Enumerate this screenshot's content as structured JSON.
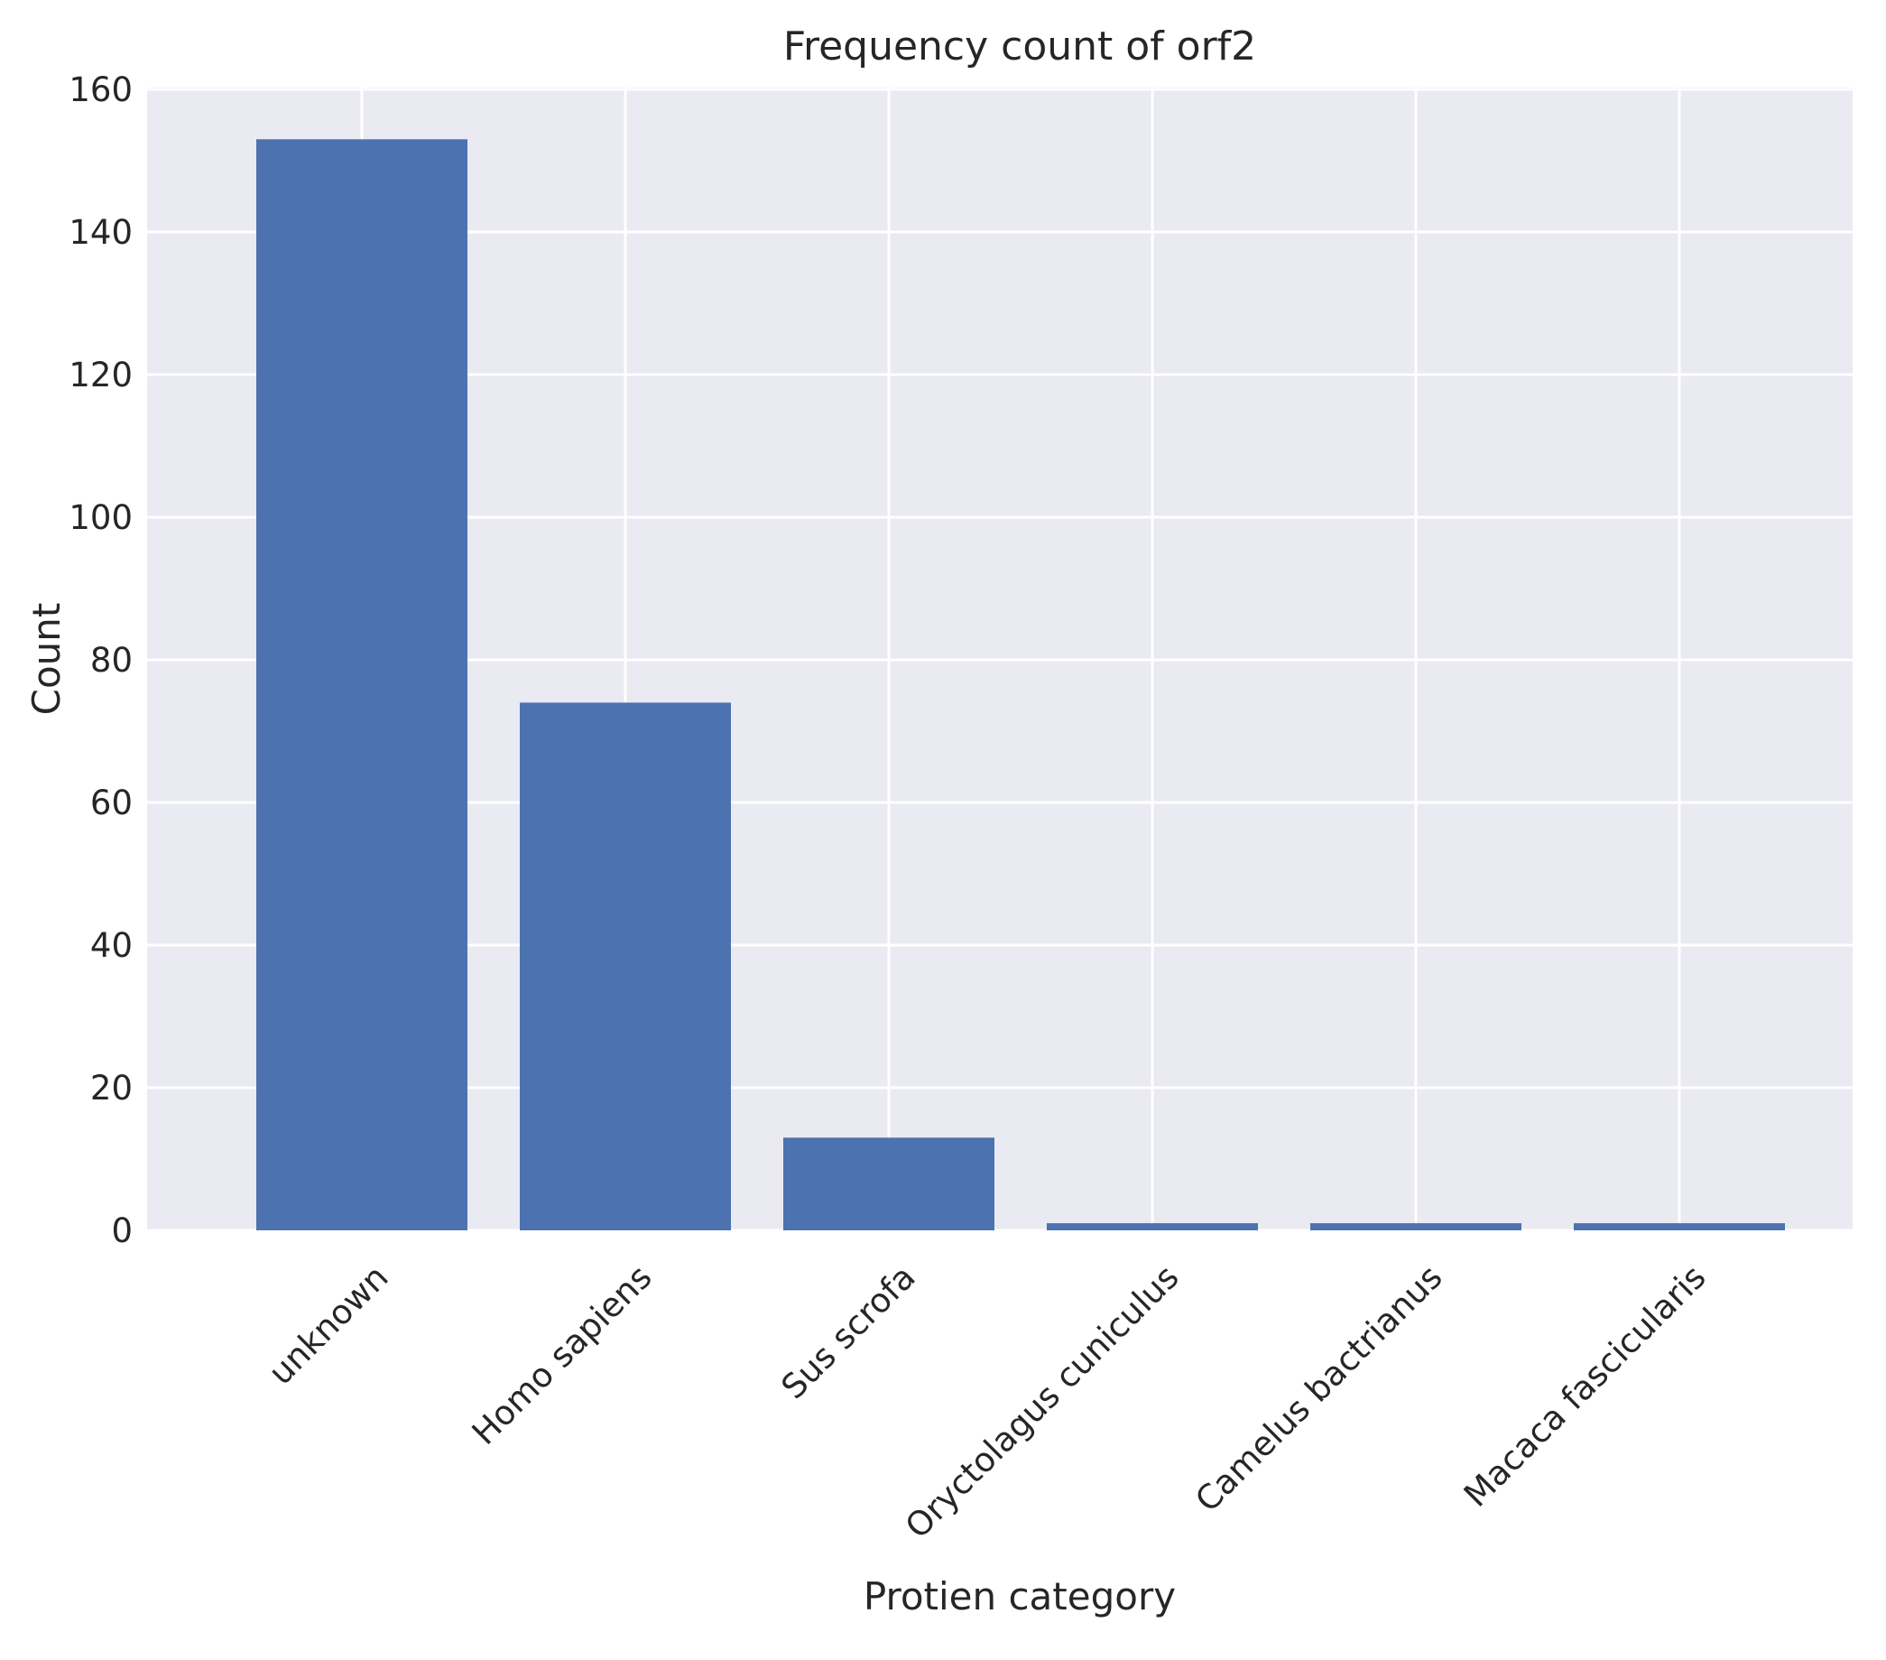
{
  "chart_data": {
    "type": "bar",
    "title": "Frequency count of orf2",
    "xlabel": "Protien category",
    "ylabel": "Count",
    "categories": [
      "unknown",
      "Homo sapiens",
      "Sus scrofa",
      "Oryctolagus cuniculus",
      "Camelus bactrianus",
      "Macaca fascicularis"
    ],
    "values": [
      153,
      74,
      13,
      1,
      1,
      1
    ],
    "ylim": [
      0,
      160
    ],
    "yticks": [
      "0",
      "20",
      "40",
      "60",
      "80",
      "100",
      "120",
      "140",
      "160"
    ],
    "grid": true,
    "colors": {
      "bar": "#4c72b0",
      "plot_background": "#eaeaf2",
      "grid": "#ffffff",
      "text": "#262626"
    }
  }
}
